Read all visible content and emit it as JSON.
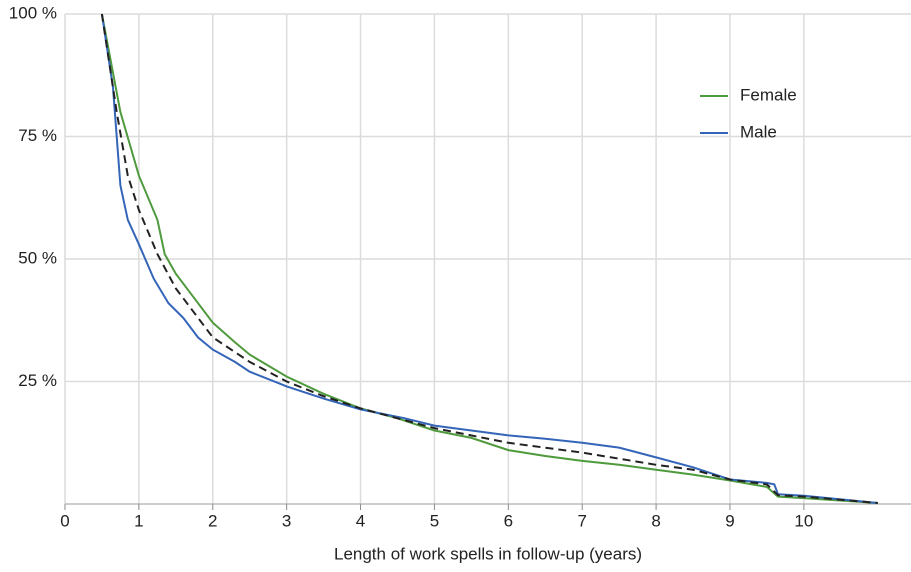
{
  "chart_data": {
    "type": "line",
    "xlabel": "Length of work spells in follow-up (years)",
    "xlim": [
      0,
      11.45
    ],
    "xticks": [
      0,
      1,
      2,
      3,
      4,
      5,
      6,
      7,
      8,
      9,
      10
    ],
    "ylim": [
      0,
      100
    ],
    "yticks": [
      {
        "value": 25,
        "label": "25 %"
      },
      {
        "value": 50,
        "label": "50 %"
      },
      {
        "value": 75,
        "label": "75 %"
      },
      {
        "value": 100,
        "label": "100 %"
      }
    ],
    "grid": true,
    "legend": "upper right",
    "series": [
      {
        "name": "Female",
        "color": "#4e9a3d",
        "x": [
          0.5,
          0.6,
          0.75,
          1.0,
          1.25,
          1.35,
          1.5,
          1.7,
          2.0,
          2.3,
          2.5,
          3.0,
          3.5,
          4.0,
          4.5,
          5.0,
          5.5,
          6.0,
          6.5,
          7.0,
          7.5,
          8.0,
          8.5,
          9.0,
          9.5,
          9.65,
          10.0,
          11.0
        ],
        "values": [
          100,
          92,
          80,
          67,
          58,
          51,
          47,
          43,
          37,
          33,
          30.5,
          26,
          22.5,
          19.5,
          17.5,
          15,
          13.5,
          11,
          9.8,
          8.8,
          8,
          7,
          6,
          4.8,
          3.5,
          1.5,
          1.2,
          0.2
        ]
      },
      {
        "name": "Male",
        "color": "#3465b8",
        "x": [
          0.5,
          0.65,
          0.75,
          0.85,
          1.0,
          1.2,
          1.4,
          1.6,
          1.8,
          2.0,
          2.3,
          2.5,
          3.0,
          3.5,
          4.0,
          4.6,
          5.0,
          5.5,
          6.0,
          6.5,
          7.0,
          7.5,
          8.0,
          8.5,
          9.0,
          9.5,
          9.6,
          9.65,
          10.0,
          11.0
        ],
        "values": [
          100,
          85,
          65,
          58,
          53,
          46,
          41,
          38,
          34,
          31.5,
          29,
          27,
          24,
          21.5,
          19.3,
          17.5,
          16,
          15,
          14,
          13.3,
          12.5,
          11.5,
          9.5,
          7.5,
          5,
          4.3,
          4,
          2,
          1.7,
          0.2
        ]
      },
      {
        "color": "#222222",
        "dash": true,
        "x": [
          0.5,
          0.7,
          0.85,
          1.0,
          1.25,
          1.5,
          2.0,
          2.5,
          3.0,
          3.5,
          4.0,
          5.0,
          6.0,
          7.0,
          8.0,
          8.5,
          9.0,
          9.5,
          9.65,
          10.0,
          11.0
        ],
        "values": [
          100,
          80,
          67,
          60,
          51,
          44,
          34,
          29,
          25,
          22,
          19.5,
          15.5,
          12.5,
          10.5,
          8,
          7,
          5,
          4,
          1.8,
          1.5,
          0.2
        ]
      }
    ]
  }
}
